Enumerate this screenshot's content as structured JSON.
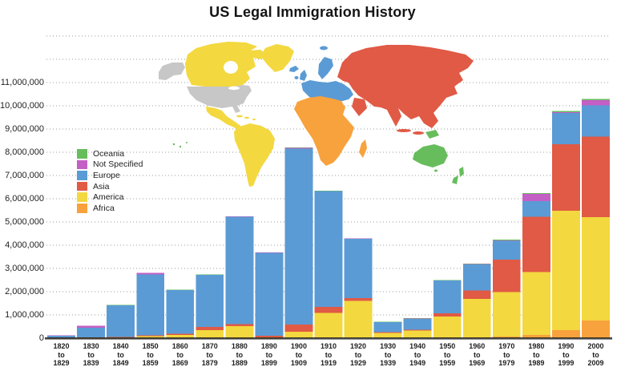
{
  "title": "US Legal Immigration History",
  "legend": {
    "items": [
      {
        "label": "Oceania",
        "color": "#67bd5c"
      },
      {
        "label": "Not Specified",
        "color": "#c45fc5"
      },
      {
        "label": "Europe",
        "color": "#5b9bd5"
      },
      {
        "label": "Asia",
        "color": "#e05a45"
      },
      {
        "label": "America",
        "color": "#f3d83f"
      },
      {
        "label": "Africa",
        "color": "#f8a23d"
      }
    ]
  },
  "map": {
    "colors": {
      "north_america": "#f3d83f",
      "south_america": "#f3d83f",
      "united_states": "#c7c7c7",
      "greenland": "#f3d83f",
      "europe": "#5b9bd5",
      "asia": "#e05a45",
      "africa": "#f8a23d",
      "oceania": "#67bd5c",
      "water": "#ffffff"
    }
  },
  "chart_data": {
    "type": "bar",
    "stacked": true,
    "title": "US Legal Immigration History",
    "xlabel": "",
    "ylabel": "",
    "grid": "dotted horizontal, every 1,000,000 up to 13,000,000",
    "legend_position": "middle-left",
    "ylim": [
      0,
      13000000
    ],
    "y_tick_step": 1000000,
    "y_tick_labels": [
      "0",
      "1,000,000",
      "2,000,000",
      "3,000,000",
      "4,000,000",
      "5,000,000",
      "6,000,000",
      "7,000,000",
      "8,000,000",
      "9,000,000",
      "10,000,000",
      "11,000,000"
    ],
    "categories": [
      "1820 to 1829",
      "1830 to 1839",
      "1840 to 1849",
      "1850 to 1859",
      "1860 to 1869",
      "1870 to 1879",
      "1880 to 1889",
      "1890 to 1899",
      "1900 to 1909",
      "1910 to 1919",
      "1920 to 1929",
      "1930 to 1939",
      "1940 to 1949",
      "1950 to 1959",
      "1960 to 1969",
      "1970 to 1979",
      "1980 to 1989",
      "1990 to 1999",
      "2000 to 2009"
    ],
    "series": [
      {
        "name": "Africa",
        "color": "#f8a23d",
        "stack_order": "bottom",
        "values": [
          15,
          50,
          61,
          84,
          407,
          371,
          763,
          432,
          6326,
          8867,
          6362,
          2120,
          6720,
          13016,
          23780,
          71408,
          141990,
          346416,
          759742
        ]
      },
      {
        "name": "America",
        "color": "#f3d83f",
        "stack_order": "2",
        "values": [
          9655,
          31905,
          50516,
          84145,
          130292,
          345010,
          524826,
          37350,
          277809,
          1070539,
          1591278,
          230319,
          328435,
          921610,
          1674172,
          1904355,
          2695329,
          5137743,
          4441529
        ]
      },
      {
        "name": "Asia",
        "color": "#e05a45",
        "stack_order": "3",
        "values": [
          34,
          55,
          121,
          36080,
          54408,
          134128,
          71151,
          61285,
          299836,
          269736,
          126740,
          19231,
          34532,
          135844,
          358605,
          1406544,
          2391356,
          2859899,
          3470835
        ]
      },
      {
        "name": "Europe",
        "color": "#5b9bd5",
        "stack_order": "4",
        "values": [
          99272,
          422771,
          1369259,
          2619680,
          1877726,
          2251878,
          4638684,
          3576411,
          7572569,
          4985411,
          2560340,
          444399,
          472524,
          1404973,
          1133443,
          825590,
          668866,
          1348612,
          1349609
        ]
      },
      {
        "name": "Not Specified",
        "color": "#c45fc5",
        "stack_order": "5",
        "values": [
          19523,
          83593,
          7366,
          74399,
          18241,
          754,
          783,
          14112,
          33493,
          488,
          930,
          0,
          135,
          12472,
          119,
          326,
          305406,
          25928,
          211922
        ]
      },
      {
        "name": "Oceania",
        "color": "#67bd5c",
        "stack_order": "top",
        "values": [
          3,
          7,
          14,
          166,
          187,
          9996,
          12361,
          4704,
          12355,
          12339,
          9860,
          3306,
          14262,
          11353,
          23630,
          39980,
          41432,
          56800,
          65793
        ]
      }
    ]
  }
}
